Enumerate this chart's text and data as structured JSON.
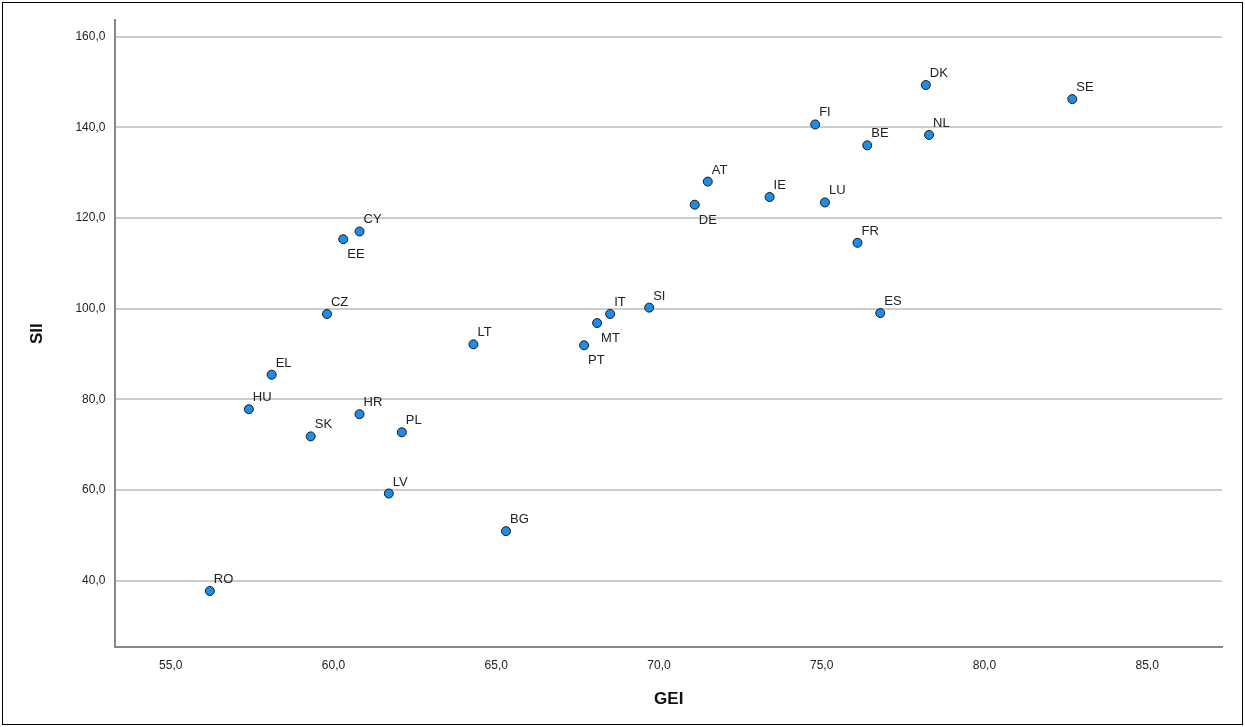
{
  "chart_data": {
    "type": "scatter",
    "xlabel": "GEI",
    "ylabel": "SII",
    "x": [
      78.2,
      82.7,
      74.8,
      76.4,
      78.3,
      71.5,
      71.1,
      73.4,
      75.1,
      76.1,
      76.8,
      60.8,
      60.3,
      59.8,
      68.1,
      68.5,
      69.7,
      64.3,
      67.7,
      58.1,
      57.4,
      60.8,
      59.3,
      62.1,
      61.7,
      65.3,
      56.2
    ],
    "series": [
      {
        "color": "#1f8ce6",
        "values": [
          149.3,
          146.2,
          140.6,
          136.0,
          138.3,
          128.0,
          122.9,
          124.6,
          123.4,
          114.5,
          99.0,
          117.0,
          115.3,
          98.8,
          96.8,
          98.8,
          100.2,
          92.1,
          91.9,
          85.4,
          77.8,
          76.7,
          71.8,
          72.7,
          59.2,
          50.9,
          37.7
        ]
      }
    ],
    "annotations": [
      {
        "text": "DK",
        "x": 78.2,
        "y": 149.3
      },
      {
        "text": "SE",
        "x": 82.7,
        "y": 146.2
      },
      {
        "text": "FI",
        "x": 74.8,
        "y": 140.6
      },
      {
        "text": "BE",
        "x": 76.4,
        "y": 136.0
      },
      {
        "text": "NL",
        "x": 78.3,
        "y": 138.3
      },
      {
        "text": "AT",
        "x": 71.5,
        "y": 128.0
      },
      {
        "text": "DE",
        "x": 71.1,
        "y": 122.9
      },
      {
        "text": "IE",
        "x": 73.4,
        "y": 124.6
      },
      {
        "text": "LU",
        "x": 75.1,
        "y": 123.4
      },
      {
        "text": "FR",
        "x": 76.1,
        "y": 114.5
      },
      {
        "text": "ES",
        "x": 76.8,
        "y": 99.0
      },
      {
        "text": "CY",
        "x": 60.8,
        "y": 117.0
      },
      {
        "text": "EE",
        "x": 60.3,
        "y": 115.3
      },
      {
        "text": "CZ",
        "x": 59.8,
        "y": 98.8
      },
      {
        "text": "MT",
        "x": 68.1,
        "y": 96.8
      },
      {
        "text": "IT",
        "x": 68.5,
        "y": 98.8
      },
      {
        "text": "SI",
        "x": 69.7,
        "y": 100.2
      },
      {
        "text": "LT",
        "x": 64.3,
        "y": 92.1
      },
      {
        "text": "PT",
        "x": 67.7,
        "y": 91.9
      },
      {
        "text": "EL",
        "x": 58.1,
        "y": 85.4
      },
      {
        "text": "HU",
        "x": 57.4,
        "y": 77.8
      },
      {
        "text": "HR",
        "x": 60.8,
        "y": 76.7
      },
      {
        "text": "SK",
        "x": 59.3,
        "y": 71.8
      },
      {
        "text": "PL",
        "x": 62.1,
        "y": 72.7
      },
      {
        "text": "LV",
        "x": 61.7,
        "y": 59.2
      },
      {
        "text": "BG",
        "x": 65.3,
        "y": 50.9
      },
      {
        "text": "RO",
        "x": 56.2,
        "y": 37.7
      }
    ],
    "xlim": [
      53.3,
      87.3
    ],
    "xticks": [
      {
        "value": 55,
        "label": "55,0"
      },
      {
        "value": 60,
        "label": "60,0"
      },
      {
        "value": 65,
        "label": "65,0"
      },
      {
        "value": 70,
        "label": "70,0"
      },
      {
        "value": 75,
        "label": "75,0"
      },
      {
        "value": 80,
        "label": "80,0"
      },
      {
        "value": 85,
        "label": "85,0"
      }
    ],
    "ylim": [
      25.3,
      163.6
    ],
    "yticks": [
      {
        "value": 40,
        "label": "40,0"
      },
      {
        "value": 60,
        "label": "60,0"
      },
      {
        "value": 80,
        "label": "80,0"
      },
      {
        "value": 100,
        "label": "100,0"
      },
      {
        "value": 120,
        "label": "120,0"
      },
      {
        "value": 140,
        "label": "140,0"
      },
      {
        "value": 160,
        "label": "160,0"
      }
    ],
    "grid": "y",
    "legend": false,
    "marker": "circle"
  }
}
